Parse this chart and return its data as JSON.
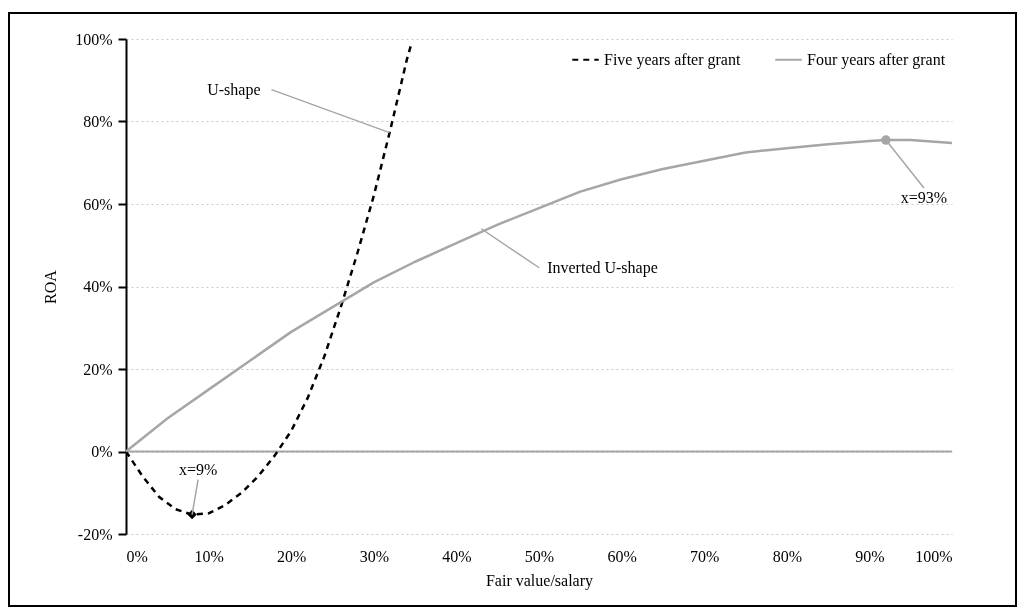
{
  "chart_data": {
    "type": "line",
    "xlabel": "Fair value/salary",
    "ylabel": "ROA",
    "xlim": [
      0,
      100
    ],
    "ylim": [
      -20,
      100
    ],
    "xticks": [
      {
        "value": 0,
        "label": "0%"
      },
      {
        "value": 10,
        "label": "10%"
      },
      {
        "value": 20,
        "label": "20%"
      },
      {
        "value": 30,
        "label": "30%"
      },
      {
        "value": 40,
        "label": "40%"
      },
      {
        "value": 50,
        "label": "50%"
      },
      {
        "value": 60,
        "label": "60%"
      },
      {
        "value": 70,
        "label": "70%"
      },
      {
        "value": 80,
        "label": "80%"
      },
      {
        "value": 90,
        "label": "90%"
      },
      {
        "value": 100,
        "label": "100%"
      }
    ],
    "yticks": [
      {
        "value": -20,
        "label": "-20%"
      },
      {
        "value": 0,
        "label": "0%"
      },
      {
        "value": 20,
        "label": "20%"
      },
      {
        "value": 40,
        "label": "40%"
      },
      {
        "value": 60,
        "label": "60%"
      },
      {
        "value": 80,
        "label": "80%"
      },
      {
        "value": 100,
        "label": "100%"
      }
    ],
    "grid": "y",
    "legend": "top right",
    "marker": "none",
    "series": [
      {
        "name": "Five years after grant",
        "color": "#000000",
        "line_style": "dashed",
        "x": [
          0,
          2,
          4,
          6,
          8,
          10,
          12,
          14,
          16,
          18,
          20,
          22,
          24,
          26,
          28,
          30,
          32,
          34,
          34.5
        ],
        "values": [
          0,
          -6,
          -11,
          -14,
          -15.3,
          -15,
          -13,
          -10,
          -6,
          -1,
          5,
          13,
          23,
          35,
          48,
          62,
          78,
          95,
          98.5
        ]
      },
      {
        "name": "Four years after grant",
        "color": "#a6a6a6",
        "line_style": "solid",
        "x": [
          0,
          5,
          10,
          15,
          20,
          25,
          30,
          35,
          40,
          45,
          50,
          55,
          60,
          65,
          70,
          75,
          80,
          85,
          90,
          92,
          95,
          100
        ],
        "values": [
          0,
          8,
          15,
          22,
          29,
          35,
          41,
          46,
          50.5,
          55,
          59,
          63,
          66,
          68.5,
          70.5,
          72.5,
          73.5,
          74.5,
          75.3,
          75.5,
          75.5,
          74.8
        ]
      },
      {
        "type": "scatter",
        "marker": "diamond",
        "color": "#000000",
        "x": [
          8
        ],
        "values": [
          -15.3
        ]
      },
      {
        "type": "scatter",
        "marker": "circle",
        "color": "#a6a6a6",
        "x": [
          92
        ],
        "values": [
          75.5
        ]
      }
    ],
    "ref_lines": [
      {
        "axis": "y",
        "value": 0,
        "color": "#a6a6a6",
        "line_style": "solid"
      }
    ],
    "annotations": [
      {
        "text": "U-shape",
        "x": 31.9,
        "y": 77.3
      },
      {
        "text": "x=9%",
        "x": 8,
        "y": -15.3
      },
      {
        "text": "Inverted U-shape",
        "x": 43,
        "y": 54
      },
      {
        "text": "x=93%",
        "x": 92,
        "y": 75.5
      }
    ]
  }
}
